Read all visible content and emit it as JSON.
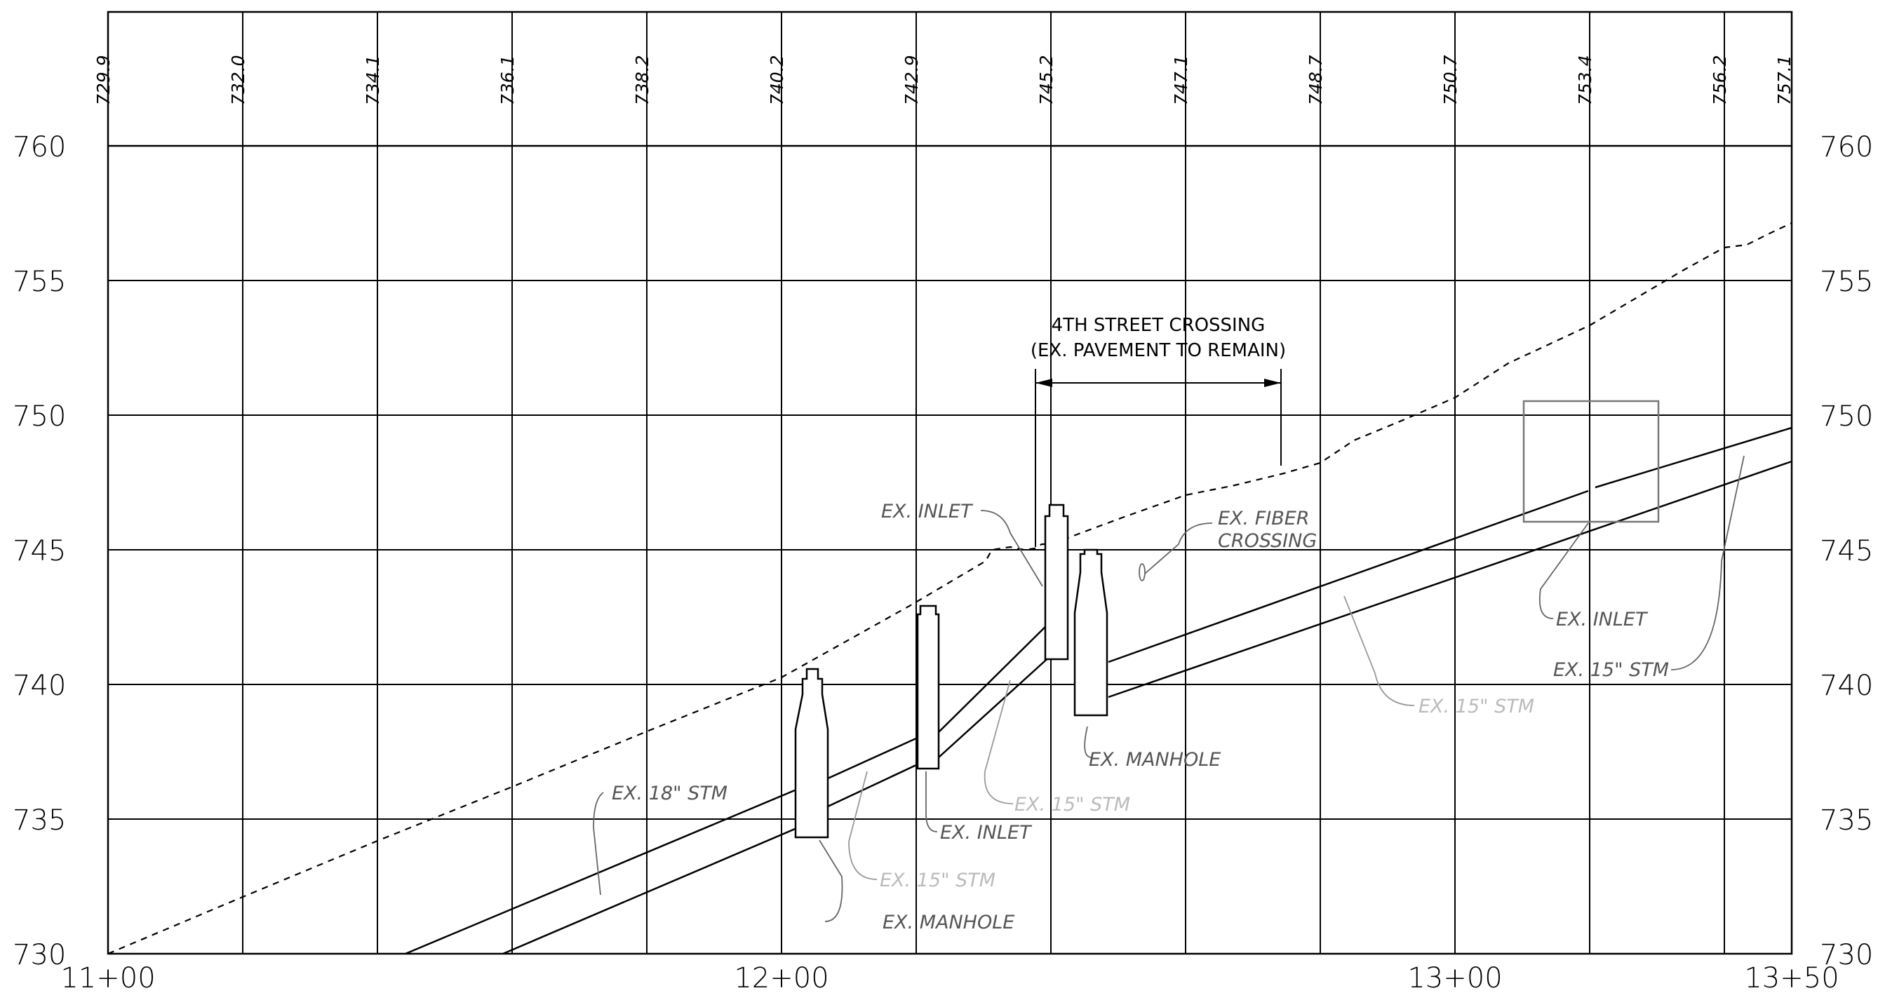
{
  "elevation_labels": [
    "730",
    "735",
    "740",
    "745",
    "750",
    "755",
    "760"
  ],
  "station_labels": [
    "11+00",
    "12+00",
    "13+00",
    "13+50"
  ],
  "grade_labels": [
    "729.9",
    "732.0",
    "734.1",
    "736.1",
    "738.2",
    "740.2",
    "742.9",
    "745.2",
    "747.1",
    "748.7",
    "750.7",
    "753.4",
    "756.2",
    "757.1"
  ],
  "notes": {
    "crossing_line1": "4TH STREET CROSSING",
    "crossing_line2": "(EX. PAVEMENT TO REMAIN)",
    "inlet_1": "EX. INLET",
    "inlet_2": "EX. INLET",
    "inlet_3": "EX. INLET",
    "fiber_line1": "EX. FIBER",
    "fiber_line2": "CROSSING",
    "manhole_1": "EX. MANHOLE",
    "manhole_2": "EX. MANHOLE",
    "stm_18": "EX. 18\" STM",
    "stm_15_a": "EX. 15\" STM",
    "stm_15_b": "EX. 15\" STM",
    "stm_15_c": "EX. 15\" STM",
    "stm_15_d": "EX. 15\" STM"
  }
}
